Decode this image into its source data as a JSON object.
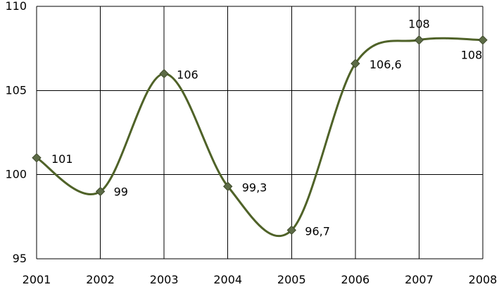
{
  "chart_data": {
    "type": "line",
    "x": [
      2001,
      2002,
      2003,
      2004,
      2005,
      2006,
      2007,
      2008
    ],
    "series": [
      {
        "values": [
          101,
          99,
          106,
          99.3,
          96.7,
          106.6,
          108,
          108
        ],
        "data_labels": [
          "101",
          "99",
          "106",
          "99,3",
          "96,7",
          "106,6",
          "108",
          "108"
        ]
      }
    ],
    "x_ticks": [
      "2001",
      "2002",
      "2003",
      "2004",
      "2005",
      "2006",
      "2007",
      "2008"
    ],
    "y_ticks": [
      "95",
      "100",
      "105",
      "110"
    ],
    "ylim": [
      95,
      110
    ],
    "xlim": [
      2001,
      2008
    ],
    "grid": true,
    "smoothed": true,
    "marker": "diamond",
    "colors": {
      "line": "#4f6228",
      "marker_fill": "#5c6b46",
      "grid": "#000000",
      "text": "#000000"
    }
  }
}
